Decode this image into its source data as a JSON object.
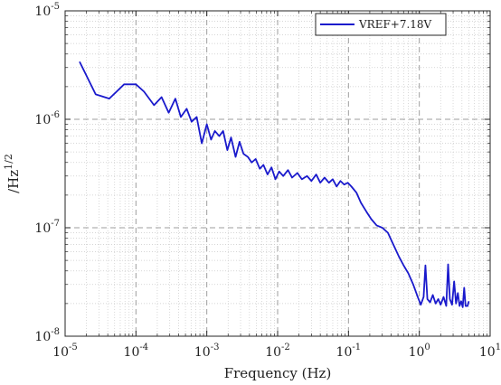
{
  "chart_data": {
    "type": "line",
    "title": "",
    "xlabel": "Frequency (Hz)",
    "ylabel": "/Hz",
    "ylabel_exponent": "1/2",
    "xscale": "log",
    "yscale": "log",
    "xlim": [
      1e-05,
      10
    ],
    "ylim": [
      1e-08,
      1e-05
    ],
    "grid": true,
    "minor_grid": true,
    "legend_position": "top-right",
    "x_ticks": [
      {
        "base": "10",
        "exp": "-5",
        "value": 1e-05
      },
      {
        "base": "10",
        "exp": "-4",
        "value": 0.0001
      },
      {
        "base": "10",
        "exp": "-3",
        "value": 0.001
      },
      {
        "base": "10",
        "exp": "-2",
        "value": 0.01
      },
      {
        "base": "10",
        "exp": "-1",
        "value": 0.1
      },
      {
        "base": "10",
        "exp": "0",
        "value": 1
      },
      {
        "base": "10",
        "exp": "1",
        "value": 10
      }
    ],
    "y_ticks": [
      {
        "base": "10",
        "exp": "-8",
        "value": 1e-08
      },
      {
        "base": "10",
        "exp": "-7",
        "value": 1e-07
      },
      {
        "base": "10",
        "exp": "-6",
        "value": 1e-06
      },
      {
        "base": "10",
        "exp": "-5",
        "value": 1e-05
      }
    ],
    "series": [
      {
        "name": "VREF+7.18V",
        "color": "#1a1acc",
        "x": [
          1.6e-05,
          2.7e-05,
          4.2e-05,
          6.8e-05,
          0.0001,
          0.00013,
          0.00018,
          0.00023,
          0.00029,
          0.00036,
          0.00043,
          0.00052,
          0.00061,
          0.00072,
          0.00085,
          0.001,
          0.00115,
          0.0013,
          0.0015,
          0.0017,
          0.00195,
          0.0022,
          0.00255,
          0.0029,
          0.0033,
          0.0038,
          0.0043,
          0.0049,
          0.0056,
          0.0063,
          0.0072,
          0.0082,
          0.0093,
          0.0105,
          0.012,
          0.014,
          0.016,
          0.019,
          0.022,
          0.026,
          0.03,
          0.035,
          0.04,
          0.046,
          0.053,
          0.06,
          0.068,
          0.077,
          0.087,
          0.098,
          0.11,
          0.13,
          0.15,
          0.18,
          0.21,
          0.25,
          0.3,
          0.36,
          0.43,
          0.51,
          0.6,
          0.7,
          0.82,
          0.95,
          1.05,
          1.15,
          1.22,
          1.3,
          1.42,
          1.55,
          1.7,
          1.85,
          2.0,
          2.2,
          2.4,
          2.55,
          2.7,
          2.9,
          3.1,
          3.3,
          3.5,
          3.7,
          3.9,
          4.1,
          4.3,
          4.5,
          4.8,
          5.0
        ],
        "y": [
          3.4e-06,
          1.7e-06,
          1.55e-06,
          2.1e-06,
          2.1e-06,
          1.8e-06,
          1.35e-06,
          1.6e-06,
          1.15e-06,
          1.55e-06,
          1.05e-06,
          1.25e-06,
          9.5e-07,
          1.05e-06,
          6e-07,
          9e-07,
          6.5e-07,
          7.8e-07,
          7e-07,
          7.8e-07,
          5.2e-07,
          6.8e-07,
          4.5e-07,
          6.2e-07,
          4.8e-07,
          4.5e-07,
          4e-07,
          4.3e-07,
          3.5e-07,
          3.8e-07,
          3.1e-07,
          3.6e-07,
          2.8e-07,
          3.3e-07,
          3e-07,
          3.4e-07,
          2.9e-07,
          3.2e-07,
          2.8e-07,
          3e-07,
          2.7e-07,
          3.1e-07,
          2.6e-07,
          2.9e-07,
          2.6e-07,
          2.8e-07,
          2.4e-07,
          2.7e-07,
          2.5e-07,
          2.6e-07,
          2.4e-07,
          2.1e-07,
          1.7e-07,
          1.4e-07,
          1.2e-07,
          1.05e-07,
          1e-07,
          9e-08,
          7e-08,
          5.5e-08,
          4.5e-08,
          3.8e-08,
          3e-08,
          2.3e-08,
          1.95e-08,
          2.3e-08,
          4.5e-08,
          2.2e-08,
          2.05e-08,
          2.4e-08,
          2e-08,
          2.2e-08,
          1.95e-08,
          2.3e-08,
          1.9e-08,
          4.6e-08,
          2.2e-08,
          1.95e-08,
          3.2e-08,
          2e-08,
          2.5e-08,
          1.9e-08,
          2.1e-08,
          1.85e-08,
          2.8e-08,
          1.9e-08,
          1.9e-08,
          2.1e-08
        ]
      }
    ]
  }
}
